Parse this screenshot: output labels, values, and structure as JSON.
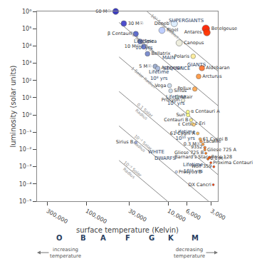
{
  "chart_data": {
    "type": "scatter",
    "log": true,
    "grid": false,
    "legend": false,
    "xlabel": "surface temperature (Kelvin)",
    "ylabel": "luminosity (solar units)",
    "xlim": [
      400000,
      2500
    ],
    "xticks": [
      {
        "value": 300000,
        "label": "300,000"
      },
      {
        "value": 100000,
        "label": "100,000"
      },
      {
        "value": 30000,
        "label": "30,000"
      },
      {
        "value": 10000,
        "label": "10,000"
      },
      {
        "value": 6000,
        "label": "6,000"
      },
      {
        "value": 3000,
        "label": "3,000"
      }
    ],
    "ylim": [
      1e-05,
      1000000
    ],
    "yticks": [
      {
        "value": 1e-05,
        "label": "10⁻⁵"
      },
      {
        "value": 0.0001,
        "label": "10⁻⁴"
      },
      {
        "value": 0.001,
        "label": "10⁻³"
      },
      {
        "value": 0.01,
        "label": "10⁻²"
      },
      {
        "value": 0.1,
        "label": "10⁻¹"
      },
      {
        "value": 1,
        "label": "10⁰"
      },
      {
        "value": 10,
        "label": "10¹"
      },
      {
        "value": 100,
        "label": "10²"
      },
      {
        "value": 1000,
        "label": "10³"
      },
      {
        "value": 10000,
        "label": "10⁴"
      },
      {
        "value": 100000,
        "label": "10⁵"
      },
      {
        "value": 1000000,
        "label": "10⁶"
      }
    ],
    "series": [
      {
        "name": "10² Solar Radius",
        "type": "line",
        "color": "#888888",
        "x": [
          2500,
          18271.6
        ],
        "values": [
          350.469,
          1000000
        ]
      },
      {
        "name": "10 Solar Radius",
        "type": "line",
        "color": "#888888",
        "x": [
          2500,
          40000
        ],
        "values": [
          3.50469,
          229684
        ]
      },
      {
        "name": "1 Solar Radius",
        "type": "line",
        "color": "#888888",
        "x": [
          2500,
          40000
        ],
        "values": [
          0.0350469,
          2296.84
        ]
      },
      {
        "name": "0.1 Solar\nRadius",
        "type": "line",
        "color": "#888888",
        "x": [
          2500,
          40000
        ],
        "values": [
          0.000350469,
          22.9684
        ]
      },
      {
        "name": "10⁻² Solar\nRadius",
        "type": "line",
        "color": "#888888",
        "x": [
          3249.3,
          40000
        ],
        "values": [
          1e-05,
          0.229684
        ]
      },
      {
        "name": "10⁻³ Solar\nRadius",
        "type": "line",
        "color": "#888888",
        "x": [
          10275,
          40000
        ],
        "values": [
          1e-05,
          0.00229684
        ]
      },
      {
        "type": "scatter",
        "labels": [
          "60 M☉",
          "30 M☉",
          "β Centauri",
          "Spica",
          "10 M☉",
          "Bellatrix",
          "5 M☉",
          "Achernar",
          "Vega",
          "Sirius",
          "Procyon",
          "Altair",
          "Sun",
          "α Centauri A",
          "Centauri B",
          "ε Eri",
          "61 Cygni A",
          "61 Cygni B",
          "0.3 M☉",
          "Lacaille",
          "9352",
          "Gliese 725 A",
          "Gliese 725 B",
          "0.1 M☉",
          "Barnard's Star",
          "Ross 128",
          "Wolf 359",
          "Proxima Centauri",
          "DX Cancri",
          "Arcturus",
          "Pollux",
          "Aldebaran",
          "Polaris",
          "Betelgeuse",
          "Antares",
          "Canopus",
          "Deneb",
          "Rigel",
          "Sirius B",
          "Procyon B",
          "ε Ceti"
        ],
        "x": [
          44000,
          35000,
          25000,
          22000,
          20000,
          18000,
          14500,
          13500,
          9700,
          9400,
          6650,
          7800,
          5778,
          5800,
          5300,
          5100,
          4400,
          4100,
          3800,
          4000,
          3600,
          3600,
          3500,
          3300,
          3130,
          3200,
          2800,
          3040,
          2840,
          4290,
          4770,
          3910,
          5000,
          3500,
          3400,
          7400,
          8500,
          12000,
          25000,
          8000,
          4900
        ],
        "values": [
          1000000,
          200000,
          50000,
          18000,
          9000,
          3500,
          650,
          500,
          50,
          25,
          7,
          11,
          1.0,
          1.5,
          0.5,
          0.3,
          0.085,
          0.04,
          0.02,
          0.029,
          0.013,
          0.0095,
          0.006,
          0.0028,
          0.0035,
          0.0034,
          0.001,
          0.0017,
          9e-05,
          170,
          32,
          520,
          2500,
          100000,
          60000,
          15000,
          200000,
          80000,
          0.025,
          0.0005,
          0.27
        ],
        "colors": [
          "#3333bb",
          "#4444cc",
          "#5566cc",
          "#6677cc",
          "#6677cc",
          "#7788cc",
          "#99aacc",
          "#aabbdd",
          "#ccddee",
          "#ccddee",
          "#eeeedd",
          "#ddeedd",
          "#ffff88",
          "#ffff88",
          "#ffee88",
          "#ffdd77",
          "#ffbb55",
          "#ffaa44",
          "#ff9933",
          "#ff9944",
          "#ff7722",
          "#ff8822",
          "#ff7711",
          "#ff6600",
          "#ff5511",
          "#ff5500",
          "#ff4400",
          "#ff4400",
          "#ff3300",
          "#ff9944",
          "#ffaa55",
          "#ff7733",
          "#ffee99",
          "#ff2200",
          "#ff3300",
          "#eeeedd",
          "#ddeeff",
          "#bbccff",
          "#aabbff",
          "#ccddff",
          "#ffcc77"
        ],
        "sizes": [
          60,
          50,
          45,
          42,
          40,
          38,
          34,
          34,
          28,
          26,
          24,
          22,
          22,
          20,
          18,
          16,
          14,
          13,
          12,
          12,
          11,
          10,
          9,
          9,
          9,
          9,
          8,
          8,
          7,
          38,
          34,
          48,
          36,
          90,
          75,
          65,
          70,
          65,
          14,
          10,
          16
        ]
      }
    ],
    "annotations": [
      {
        "text": "SUPERGIANTS",
        "x": 6000,
        "y": 300000
      },
      {
        "text": "GIANTS",
        "x": 4500,
        "y": 800
      },
      {
        "text": "MAIN",
        "x": 10000,
        "y": 2000
      },
      {
        "text": "SEQUENCE",
        "x": 8000,
        "y": 500
      },
      {
        "text": "WHITE",
        "x": 14000,
        "y": 0.007
      },
      {
        "text": "DWARFS",
        "x": 11000,
        "y": 0.003
      },
      {
        "text": "Lifetime\n10⁷ yrs",
        "x": 20000,
        "y": 12000
      },
      {
        "text": "Lifetime\n10⁸ yrs",
        "x": 13000,
        "y": 200
      },
      {
        "text": "Lifetime\n10⁹ yrs",
        "x": 8200,
        "y": 7
      },
      {
        "text": "Lifetime\n10¹⁰ yrs",
        "x": 6300,
        "y": 0.07
      },
      {
        "text": "Lifetime\n10¹¹ yrs",
        "x": 5000,
        "y": 0.0008
      }
    ],
    "spectral_classes": [
      "O",
      "B",
      "A",
      "F",
      "G",
      "K",
      "M"
    ],
    "arrow_notes": [
      "increasing\ntemperature",
      "decreasing\ntemperature"
    ]
  }
}
